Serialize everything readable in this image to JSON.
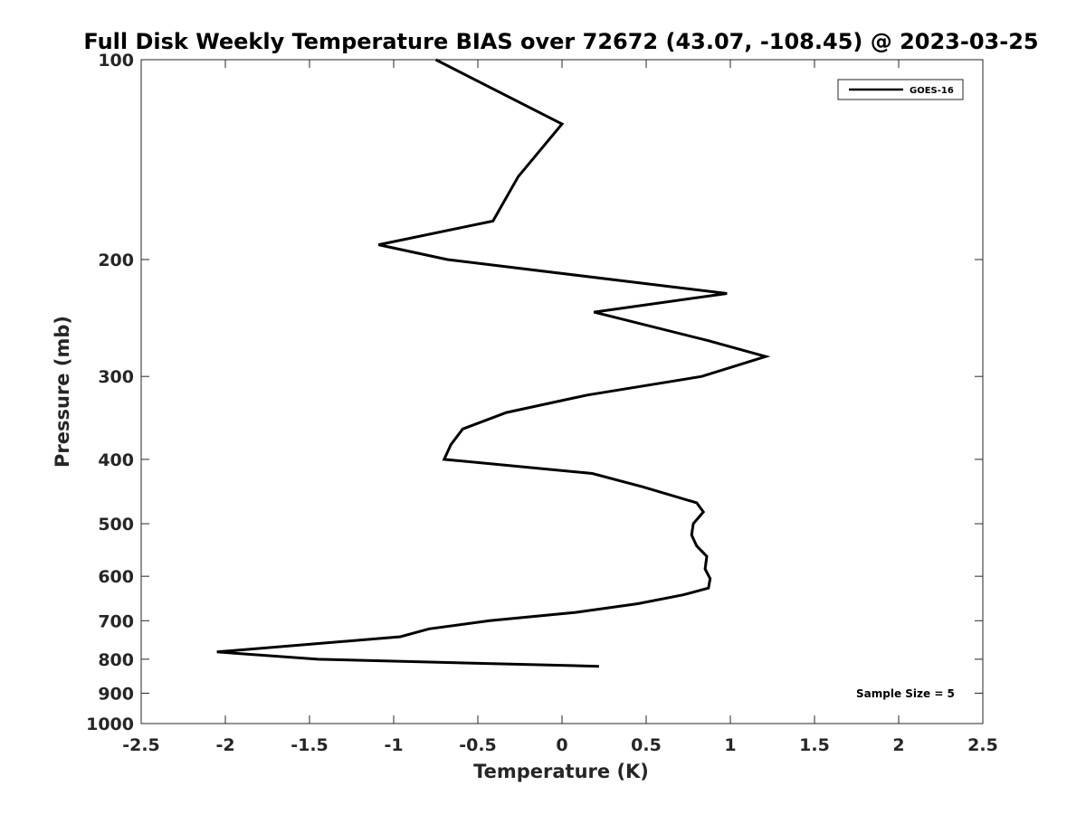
{
  "chart_data": {
    "type": "line",
    "title": "Full Disk Weekly Temperature BIAS over 72672 (43.07, -108.45) @ 2023-03-25",
    "xlabel": "Temperature (K)",
    "ylabel": "Pressure (mb)",
    "xlim": [
      -2.5,
      2.5
    ],
    "ylim": [
      100,
      1000
    ],
    "y_scale": "log",
    "y_reversed": true,
    "x_ticks": [
      -2.5,
      -2,
      -1.5,
      -1,
      -0.5,
      0,
      0.5,
      1,
      1.5,
      2,
      2.5
    ],
    "x_tick_labels": [
      "-2.5",
      "-2",
      "-1.5",
      "-1",
      "-0.5",
      "0",
      "0.5",
      "1",
      "1.5",
      "2",
      "2.5"
    ],
    "y_ticks": [
      100,
      200,
      300,
      400,
      500,
      600,
      700,
      800,
      900,
      1000
    ],
    "y_tick_labels": [
      "100",
      "200",
      "300",
      "400",
      "500",
      "600",
      "700",
      "800",
      "900",
      "1000"
    ],
    "grid": false,
    "legend_position": "top-right",
    "annotation": "Sample Size = 5",
    "line_color": "#000000",
    "series": [
      {
        "name": "GOES-16",
        "points": [
          [
            -0.75,
            100
          ],
          [
            0.0,
            125
          ],
          [
            -0.26,
            150
          ],
          [
            -0.41,
            175
          ],
          [
            -1.09,
            190
          ],
          [
            -0.68,
            200
          ],
          [
            0.98,
            225
          ],
          [
            0.19,
            240
          ],
          [
            0.87,
            265
          ],
          [
            1.21,
            280
          ],
          [
            0.83,
            300
          ],
          [
            0.15,
            320
          ],
          [
            -0.33,
            340
          ],
          [
            -0.59,
            360
          ],
          [
            -0.66,
            380
          ],
          [
            -0.7,
            400
          ],
          [
            0.18,
            420
          ],
          [
            0.48,
            440
          ],
          [
            0.8,
            465
          ],
          [
            0.84,
            480
          ],
          [
            0.78,
            500
          ],
          [
            0.77,
            520
          ],
          [
            0.8,
            540
          ],
          [
            0.86,
            560
          ],
          [
            0.85,
            585
          ],
          [
            0.88,
            605
          ],
          [
            0.87,
            625
          ],
          [
            0.72,
            640
          ],
          [
            0.45,
            660
          ],
          [
            0.08,
            680
          ],
          [
            -0.43,
            700
          ],
          [
            -0.79,
            720
          ],
          [
            -0.96,
            740
          ],
          [
            -2.05,
            780
          ],
          [
            -1.45,
            800
          ],
          [
            0.22,
            820
          ]
        ]
      }
    ]
  }
}
